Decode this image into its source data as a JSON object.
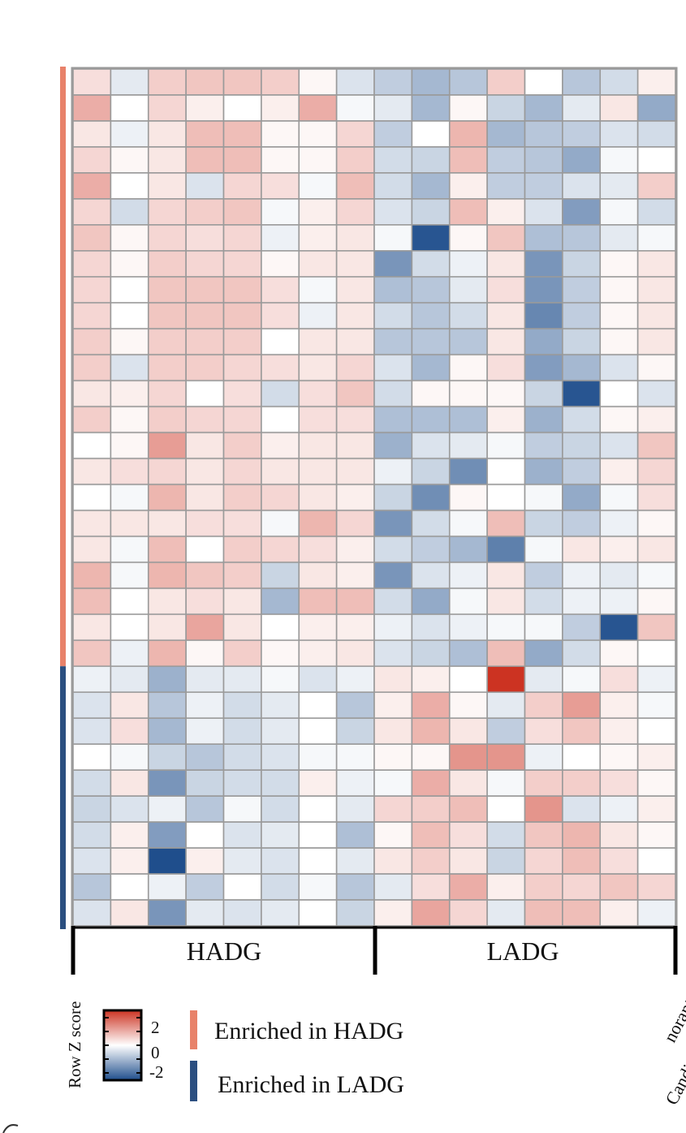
{
  "chart_data": {
    "type": "heatmap",
    "title": "",
    "rows": 33,
    "columns": 16,
    "color_scale": {
      "label": "Row Z score",
      "min": -2.5,
      "max": 2.5,
      "ticks": [
        {
          "value": 2,
          "label": "2"
        },
        {
          "value": 0,
          "label": "0"
        },
        {
          "value": -2,
          "label": "-2"
        }
      ],
      "low_color": "#1f4e8c",
      "mid_color": "#ffffff",
      "high_color": "#cc3322"
    },
    "column_groups": [
      {
        "label": "HADG",
        "start": 0,
        "end": 7
      },
      {
        "label": "LADG",
        "start": 8,
        "end": 15
      }
    ],
    "row_groups": [
      {
        "name": "Enriched in HADG",
        "start": 0,
        "end": 22,
        "color": "#e8826a"
      },
      {
        "name": "Enriched in LADG",
        "start": 23,
        "end": 32,
        "color": "#2b4f80"
      }
    ],
    "values": [
      [
        0.4,
        -0.3,
        0.6,
        0.7,
        0.7,
        0.6,
        0.1,
        -0.4,
        -0.7,
        -1.0,
        -0.8,
        0.6,
        0.0,
        -0.8,
        -0.5,
        0.2
      ],
      [
        1.0,
        0.0,
        0.5,
        0.2,
        0.0,
        0.2,
        1.0,
        -0.1,
        -0.3,
        -1.0,
        0.1,
        -0.6,
        -1.0,
        -0.3,
        0.3,
        -1.2
      ],
      [
        0.3,
        -0.2,
        0.3,
        0.8,
        0.8,
        0.1,
        0.1,
        0.5,
        -0.7,
        0.0,
        0.9,
        -1.0,
        -0.8,
        -0.7,
        -0.4,
        -0.5
      ],
      [
        0.5,
        0.1,
        0.3,
        0.8,
        0.8,
        0.1,
        0.1,
        0.6,
        -0.5,
        -0.6,
        0.8,
        -0.7,
        -0.8,
        -1.2,
        -0.1,
        0.0
      ],
      [
        1.0,
        0.0,
        0.3,
        -0.4,
        0.5,
        0.4,
        -0.1,
        0.8,
        -0.5,
        -1.0,
        0.2,
        -0.7,
        -0.7,
        -0.4,
        -0.3,
        0.6
      ],
      [
        0.5,
        -0.5,
        0.5,
        0.6,
        0.7,
        -0.1,
        0.2,
        0.5,
        -0.4,
        -0.6,
        0.8,
        0.2,
        -0.4,
        -1.4,
        -0.1,
        -0.5
      ],
      [
        0.7,
        0.1,
        0.5,
        0.4,
        0.5,
        -0.2,
        0.2,
        0.3,
        -0.1,
        -2.4,
        0.1,
        0.7,
        -0.9,
        -0.8,
        -0.3,
        -0.1
      ],
      [
        0.5,
        0.1,
        0.6,
        0.5,
        0.5,
        0.1,
        0.3,
        0.3,
        -1.5,
        -0.5,
        -0.2,
        0.3,
        -1.5,
        -0.6,
        0.1,
        0.3
      ],
      [
        0.5,
        0.0,
        0.7,
        0.7,
        0.7,
        0.4,
        -0.1,
        0.3,
        -0.9,
        -0.8,
        -0.3,
        0.4,
        -1.5,
        -0.7,
        0.1,
        0.3
      ],
      [
        0.5,
        0.0,
        0.7,
        0.7,
        0.7,
        0.4,
        -0.2,
        0.3,
        -0.5,
        -0.8,
        -0.5,
        0.3,
        -1.7,
        -0.7,
        0.1,
        0.3
      ],
      [
        0.6,
        0.1,
        0.6,
        0.6,
        0.6,
        0.0,
        0.3,
        0.3,
        -0.8,
        -0.8,
        -0.8,
        0.3,
        -1.2,
        -0.6,
        0.1,
        0.3
      ],
      [
        0.6,
        -0.4,
        0.6,
        0.6,
        0.5,
        0.4,
        0.3,
        0.5,
        -0.4,
        -1.0,
        0.1,
        0.4,
        -1.4,
        -1.0,
        -0.4,
        0.1
      ],
      [
        0.3,
        0.2,
        0.5,
        0.0,
        0.4,
        -0.5,
        0.4,
        0.7,
        -0.5,
        0.1,
        0.1,
        0.1,
        -0.6,
        -2.4,
        0.0,
        -0.4
      ],
      [
        0.6,
        0.1,
        0.6,
        0.5,
        0.5,
        0.0,
        0.4,
        0.4,
        -0.9,
        -0.9,
        -0.9,
        0.2,
        -1.1,
        -0.5,
        0.1,
        0.2
      ],
      [
        0.0,
        0.1,
        1.2,
        0.3,
        0.6,
        0.2,
        0.3,
        0.3,
        -1.1,
        -0.4,
        -0.3,
        -0.1,
        -0.7,
        -0.6,
        -0.4,
        0.7
      ],
      [
        0.3,
        0.4,
        0.5,
        0.3,
        0.5,
        0.3,
        0.3,
        0.3,
        -0.2,
        -0.6,
        -1.6,
        0.0,
        -1.1,
        -0.7,
        0.2,
        0.5
      ],
      [
        0.0,
        -0.1,
        0.9,
        0.3,
        0.6,
        0.5,
        0.3,
        0.2,
        -0.6,
        -1.6,
        0.1,
        0.0,
        -0.1,
        -1.2,
        -0.1,
        0.4
      ],
      [
        0.3,
        0.3,
        0.3,
        0.4,
        0.4,
        -0.1,
        0.9,
        0.5,
        -1.5,
        -0.5,
        -0.1,
        0.8,
        -0.6,
        -0.7,
        -0.2,
        0.1
      ],
      [
        0.3,
        -0.1,
        0.8,
        0.0,
        0.6,
        0.5,
        0.4,
        0.2,
        -0.5,
        -0.7,
        -1.0,
        -1.8,
        -0.1,
        0.3,
        0.2,
        0.3
      ],
      [
        0.9,
        -0.1,
        0.9,
        0.7,
        0.6,
        -0.6,
        0.3,
        0.2,
        -1.5,
        -0.4,
        -0.2,
        0.3,
        -0.7,
        -0.2,
        -0.3,
        -0.1
      ],
      [
        0.8,
        0.0,
        0.3,
        0.4,
        0.3,
        -1.0,
        0.8,
        0.8,
        -0.5,
        -1.2,
        -0.1,
        0.3,
        -0.5,
        -0.2,
        -0.2,
        0.1
      ],
      [
        0.3,
        0.0,
        0.3,
        1.1,
        0.3,
        0.0,
        0.2,
        0.2,
        -0.2,
        -0.4,
        -0.2,
        -0.1,
        -0.1,
        -0.7,
        -2.4,
        0.7
      ],
      [
        0.7,
        -0.2,
        0.9,
        0.1,
        0.6,
        0.1,
        0.2,
        0.3,
        -0.4,
        -0.6,
        -0.9,
        0.8,
        -1.2,
        -0.5,
        0.1,
        0.0
      ],
      [
        -0.2,
        -0.3,
        -1.1,
        -0.3,
        -0.3,
        -0.1,
        -0.4,
        -0.2,
        0.3,
        0.2,
        0.0,
        2.5,
        -0.3,
        -0.1,
        0.4,
        -0.2
      ],
      [
        -0.4,
        0.3,
        -0.8,
        -0.2,
        -0.5,
        -0.3,
        0.0,
        -0.8,
        0.2,
        1.0,
        0.1,
        -0.3,
        0.6,
        1.2,
        0.2,
        -0.1
      ],
      [
        -0.4,
        0.4,
        -1.0,
        -0.2,
        -0.5,
        -0.3,
        0.0,
        -0.6,
        0.3,
        0.9,
        0.3,
        -0.7,
        0.4,
        0.7,
        0.2,
        0.0
      ],
      [
        0.0,
        -0.1,
        -0.6,
        -0.8,
        -0.5,
        -0.4,
        -0.1,
        -0.1,
        0.1,
        0.1,
        1.3,
        1.3,
        -0.2,
        0.0,
        0.1,
        0.2
      ],
      [
        -0.5,
        0.3,
        -1.5,
        -0.6,
        -0.5,
        -0.5,
        0.2,
        -0.2,
        -0.1,
        1.0,
        0.3,
        -0.1,
        0.6,
        0.6,
        0.4,
        0.1
      ],
      [
        -0.6,
        -0.4,
        -0.2,
        -0.8,
        -0.1,
        -0.5,
        0.0,
        -0.3,
        0.5,
        0.6,
        0.8,
        0.0,
        1.3,
        -0.4,
        -0.2,
        0.2
      ],
      [
        -0.5,
        0.2,
        -1.4,
        0.0,
        -0.4,
        -0.3,
        0.0,
        -0.9,
        0.1,
        0.8,
        0.4,
        -0.5,
        0.7,
        0.9,
        0.3,
        0.1
      ],
      [
        -0.4,
        0.2,
        -2.5,
        0.2,
        -0.3,
        -0.4,
        0.0,
        -0.3,
        0.3,
        0.6,
        0.3,
        -0.6,
        0.5,
        0.8,
        0.4,
        0.0
      ],
      [
        -0.8,
        0.0,
        -0.2,
        -0.7,
        0.0,
        -0.5,
        -0.1,
        -0.8,
        -0.3,
        0.4,
        1.0,
        0.2,
        0.6,
        0.5,
        0.7,
        0.5
      ],
      [
        -0.4,
        0.3,
        -1.5,
        -0.3,
        -0.4,
        -0.3,
        0.0,
        -0.6,
        0.2,
        1.1,
        0.5,
        -0.3,
        0.8,
        0.8,
        0.2,
        -0.2
      ]
    ]
  },
  "legend": {
    "scale_title": "Row Z score",
    "items": [
      {
        "label": "Enriched in HADG",
        "color": "#e8826a"
      },
      {
        "label": "Enriched in LADG",
        "color": "#2b4f80"
      }
    ]
  },
  "cutoff_text": {
    "upper": "norant",
    "lower": "Candi"
  },
  "colors": {
    "grid_line": "#9a9a9a",
    "axis": "#000000"
  }
}
